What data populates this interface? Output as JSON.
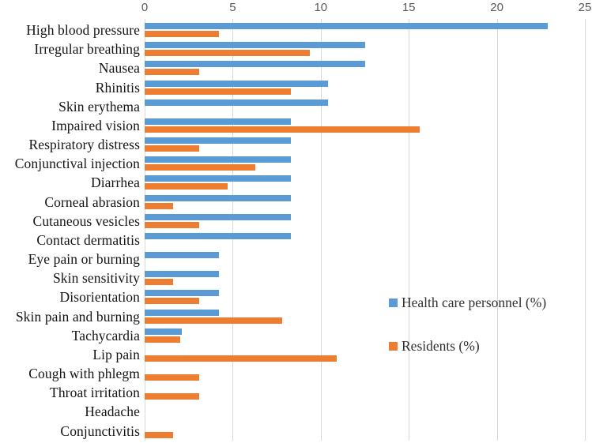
{
  "chart_data": {
    "type": "bar",
    "orientation": "horizontal",
    "title": "",
    "xlabel": "",
    "ylabel": "",
    "xlim": [
      0,
      25
    ],
    "x_ticks": [
      0,
      5,
      10,
      15,
      20,
      25
    ],
    "grid": true,
    "legend_position": "right-middle",
    "categories": [
      "High blood pressure",
      "Irregular breathing",
      "Nausea",
      "Rhinitis",
      "Skin erythema",
      "Impaired vision",
      "Respiratory distress",
      "Conjunctival injection",
      "Diarrhea",
      "Corneal abrasion",
      "Cutaneous vesicles",
      "Contact dermatitis",
      "Eye pain or burning",
      "Skin sensitivity",
      "Disorientation",
      "Skin pain and burning",
      "Tachycardia",
      "Lip pain",
      "Cough with phlegm",
      "Throat irritation",
      "Headache",
      "Conjunctivitis"
    ],
    "series": [
      {
        "name": "Health care personnel (%)",
        "color": "#5B9BD5",
        "values": [
          22.9,
          12.5,
          12.5,
          10.4,
          10.4,
          8.3,
          8.3,
          8.3,
          8.3,
          8.3,
          8.3,
          8.3,
          4.2,
          4.2,
          4.2,
          4.2,
          2.1,
          0,
          0,
          0,
          0,
          0
        ]
      },
      {
        "name": "Residents (%)",
        "color": "#ED7D31",
        "values": [
          4.2,
          9.4,
          3.1,
          8.3,
          0,
          15.6,
          3.1,
          6.3,
          4.7,
          1.6,
          3.1,
          0,
          0,
          1.6,
          3.1,
          7.8,
          2.0,
          10.9,
          3.1,
          3.1,
          0,
          1.6
        ]
      }
    ]
  },
  "legend": {
    "items": [
      {
        "label": "Health care personnel (%)",
        "color": "#5B9BD5"
      },
      {
        "label": "Residents (%)",
        "color": "#ED7D31"
      }
    ]
  },
  "colors": {
    "background": "#FFFFFF",
    "grid": "#D9D9D9",
    "axis_text": "#595959",
    "category_text": "#141414",
    "series_blue": "#5B9BD5",
    "series_orange": "#ED7D31"
  }
}
